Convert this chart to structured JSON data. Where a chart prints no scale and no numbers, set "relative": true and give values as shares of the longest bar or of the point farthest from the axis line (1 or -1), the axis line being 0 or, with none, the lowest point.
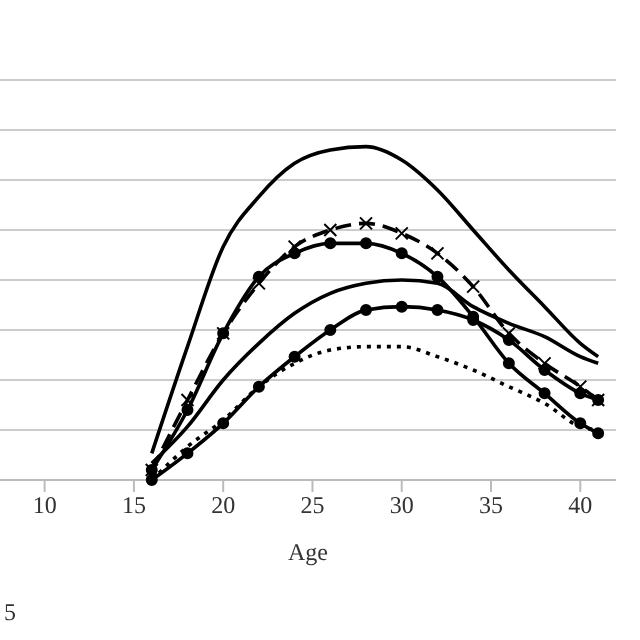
{
  "chart_data": {
    "type": "line",
    "relative": true,
    "xlabel": "Age",
    "x": [
      16,
      18,
      20,
      22,
      24,
      26,
      28,
      30,
      32,
      34,
      36,
      38,
      40,
      41
    ],
    "xlim": [
      7.5,
      42
    ],
    "xticks": [
      10,
      15,
      20,
      25,
      30,
      35,
      40
    ],
    "grid": "y",
    "legend": false,
    "annotations": [
      "5"
    ],
    "series": [
      {
        "color": "#000000",
        "line_style": "solid",
        "marker": "none",
        "values": [
          0.08,
          0.4,
          0.7,
          0.85,
          0.95,
          0.99,
          1.0,
          0.96,
          0.87,
          0.75,
          0.63,
          0.52,
          0.41,
          0.37
        ]
      },
      {
        "color": "#000000",
        "line_style": "dashed",
        "marker": "cross",
        "values": [
          0.03,
          0.24,
          0.44,
          0.59,
          0.7,
          0.75,
          0.77,
          0.74,
          0.68,
          0.58,
          0.44,
          0.35,
          0.28,
          0.24
        ]
      },
      {
        "color": "#000000",
        "line_style": "solid",
        "marker": "circle",
        "values": [
          0.03,
          0.21,
          0.44,
          0.61,
          0.68,
          0.71,
          0.71,
          0.68,
          0.61,
          0.49,
          0.35,
          0.26,
          0.17,
          0.14
        ]
      },
      {
        "color": "#000000",
        "line_style": "solid",
        "marker": "none",
        "values": [
          0.05,
          0.16,
          0.3,
          0.41,
          0.5,
          0.56,
          0.59,
          0.6,
          0.59,
          0.52,
          0.47,
          0.43,
          0.37,
          0.35
        ]
      },
      {
        "color": "#000000",
        "line_style": "solid",
        "marker": "circle",
        "values": [
          0.0,
          0.08,
          0.17,
          0.28,
          0.37,
          0.45,
          0.51,
          0.52,
          0.51,
          0.48,
          0.42,
          0.33,
          0.26,
          0.24
        ]
      },
      {
        "color": "#000000",
        "line_style": "dotted",
        "marker": "none",
        "values": [
          0.0,
          0.1,
          0.18,
          0.28,
          0.35,
          0.39,
          0.4,
          0.4,
          0.37,
          0.33,
          0.28,
          0.23,
          0.16,
          0.15
        ]
      }
    ]
  }
}
